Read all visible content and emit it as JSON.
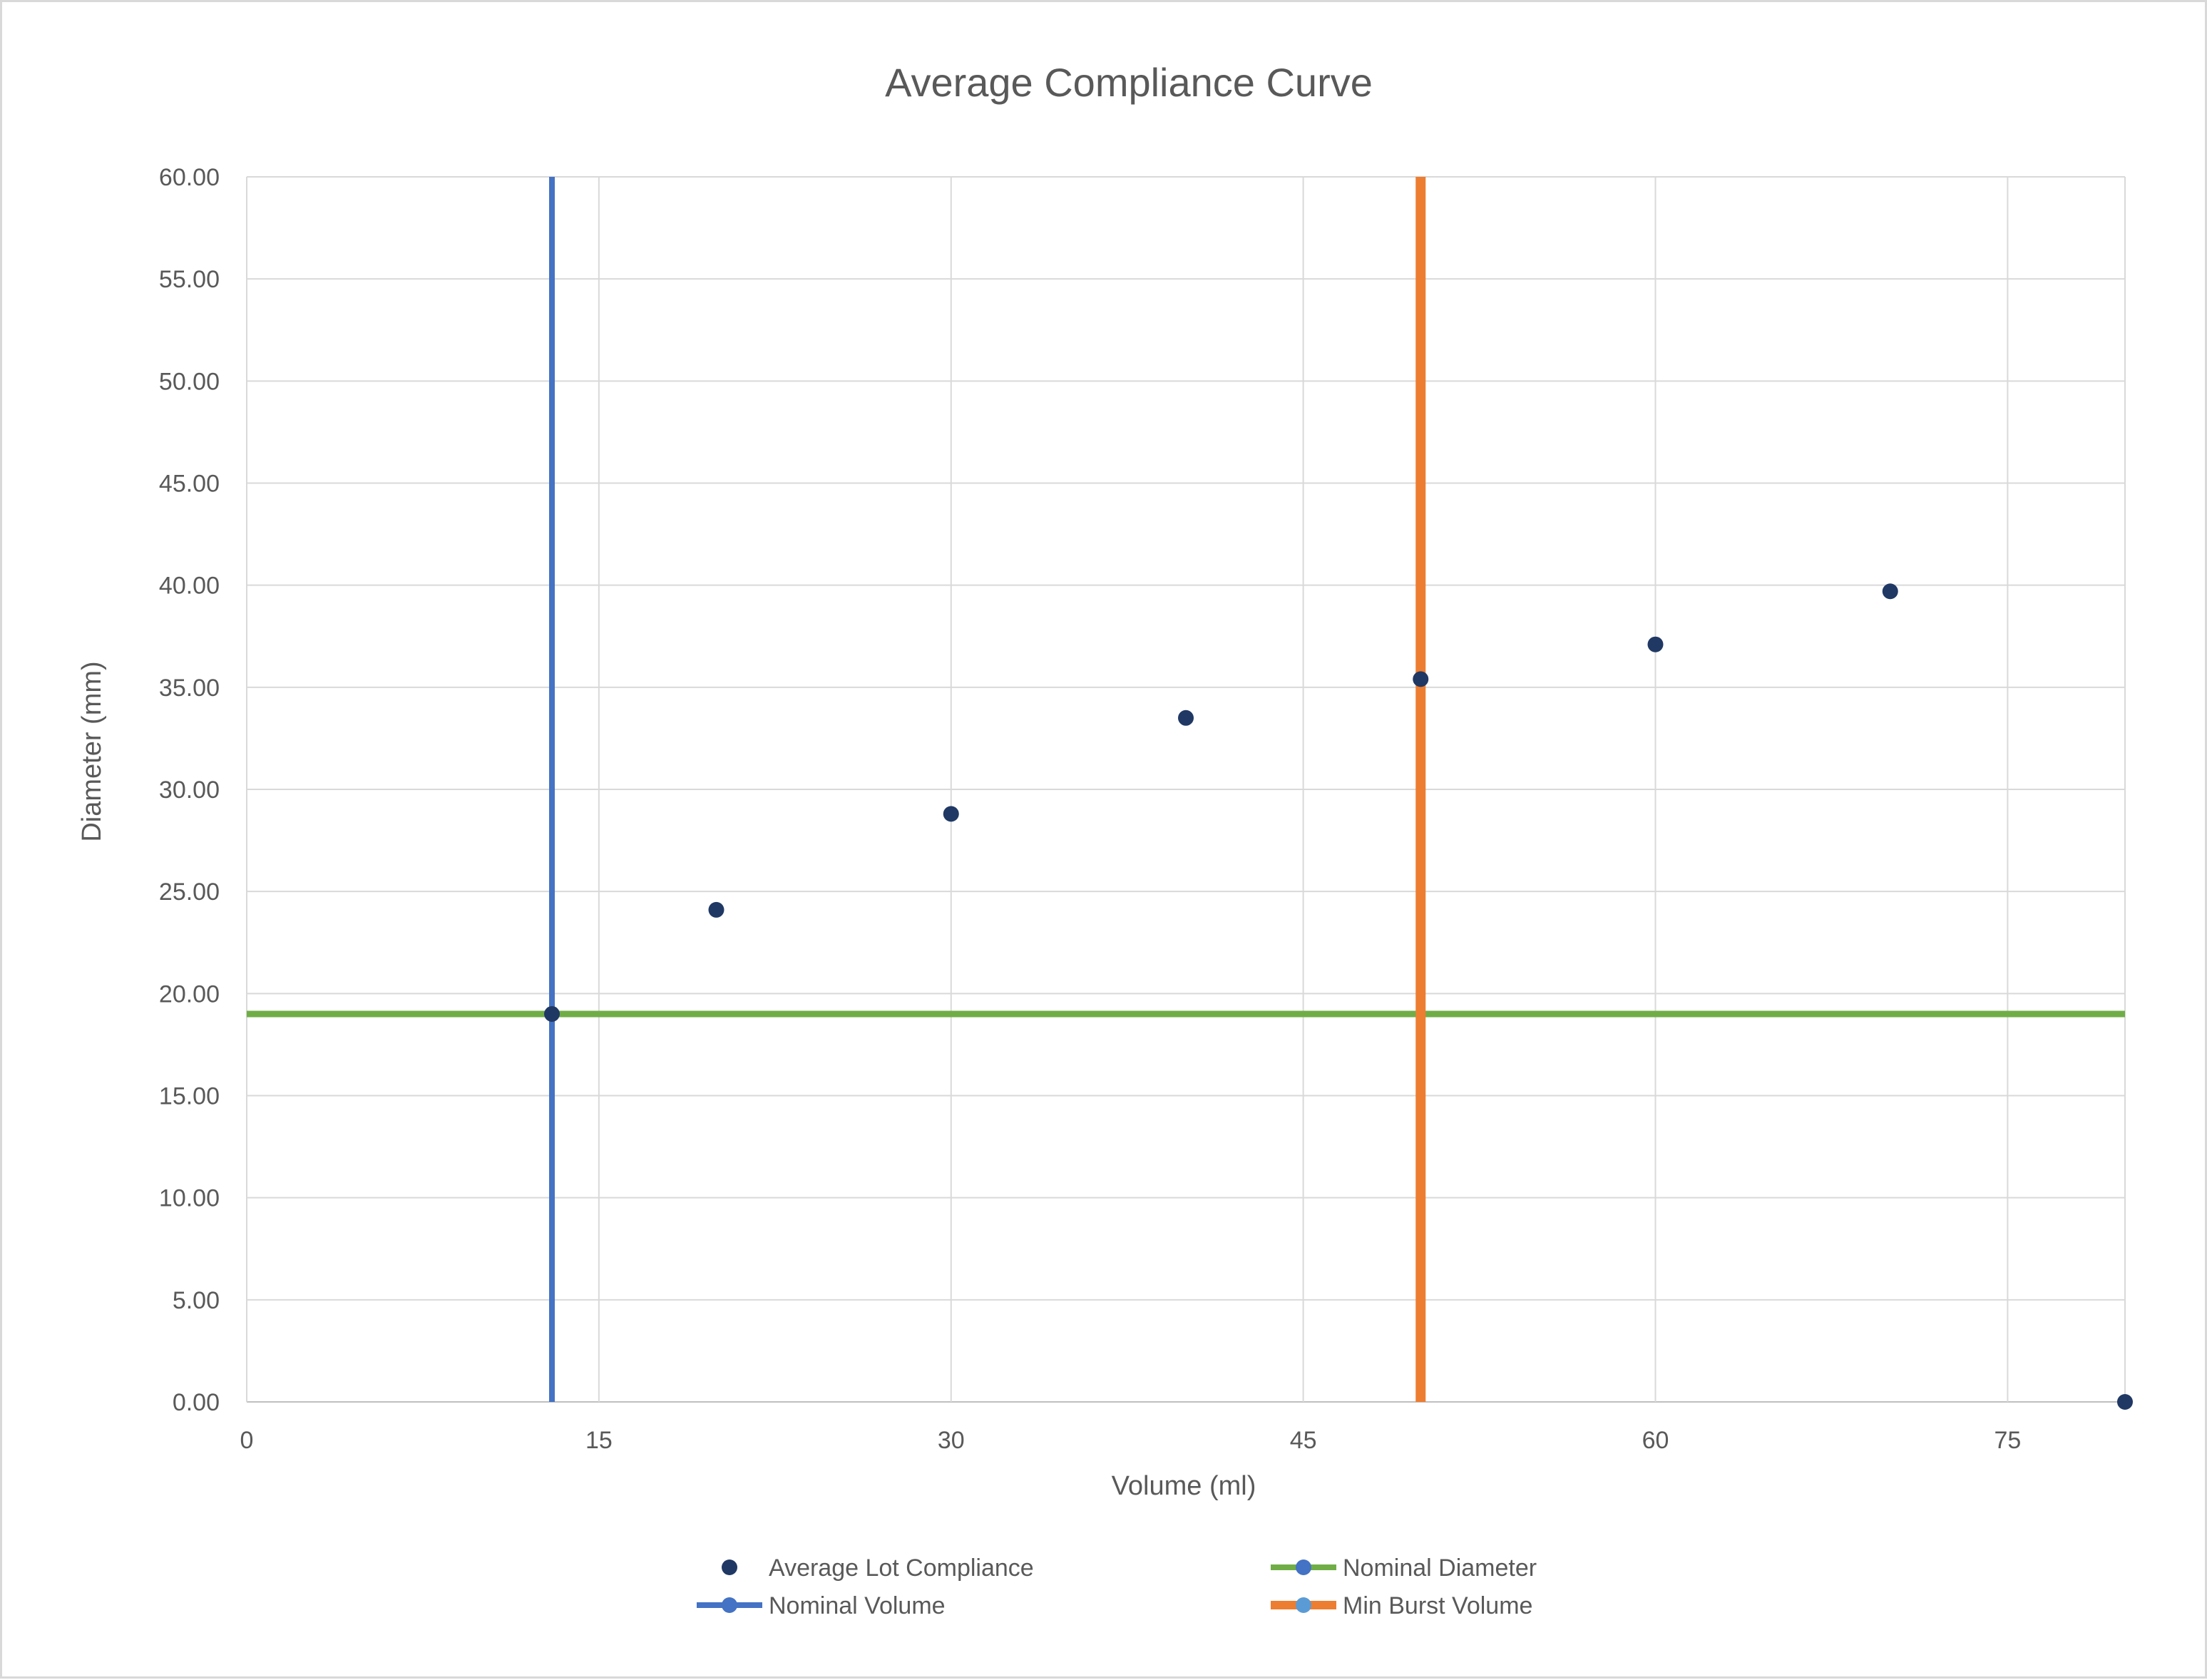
{
  "chart_data": {
    "type": "scatter",
    "title": "Average Compliance Curve",
    "xlabel": "Volume (ml)",
    "ylabel": "Diameter (mm)",
    "xlim": [
      0,
      80
    ],
    "ylim": [
      0,
      60
    ],
    "x_ticks": [
      "0",
      "15",
      "30",
      "45",
      "60",
      "75"
    ],
    "x_tick_values": [
      0,
      15,
      30,
      45,
      60,
      75
    ],
    "y_ticks": [
      "0.00",
      "5.00",
      "10.00",
      "15.00",
      "20.00",
      "25.00",
      "30.00",
      "35.00",
      "40.00",
      "45.00",
      "50.00",
      "55.00",
      "60.00"
    ],
    "y_tick_values": [
      0,
      5,
      10,
      15,
      20,
      25,
      30,
      35,
      40,
      45,
      50,
      55,
      60
    ],
    "grid": true,
    "legend_position": "bottom",
    "series": [
      {
        "name": "Average Lot Compliance",
        "kind": "markers",
        "color": "#203864",
        "points": [
          {
            "x": 13,
            "y": 19.0
          },
          {
            "x": 20,
            "y": 24.1
          },
          {
            "x": 30,
            "y": 28.8
          },
          {
            "x": 40,
            "y": 33.5
          },
          {
            "x": 50,
            "y": 35.4
          },
          {
            "x": 60,
            "y": 37.1
          },
          {
            "x": 70,
            "y": 39.7
          },
          {
            "x": 80,
            "y": 0.0
          }
        ]
      },
      {
        "name": "Nominal Diameter",
        "kind": "line",
        "color": "#70ad47",
        "marker_color": "#4472c4",
        "points": [
          {
            "x": 0,
            "y": 19.0
          },
          {
            "x": 80,
            "y": 19.0
          }
        ]
      },
      {
        "name": "Nominal Volume",
        "kind": "line",
        "color": "#4472c4",
        "marker_color": "#4472c4",
        "points": [
          {
            "x": 13,
            "y": 0
          },
          {
            "x": 13,
            "y": 60
          }
        ]
      },
      {
        "name": "Min Burst Volume",
        "kind": "line",
        "color": "#ed7d31",
        "marker_color": "#5b9bd5",
        "points": [
          {
            "x": 50,
            "y": 0
          },
          {
            "x": 50,
            "y": 60
          }
        ]
      }
    ],
    "legend_order": [
      0,
      1,
      2,
      3
    ]
  }
}
